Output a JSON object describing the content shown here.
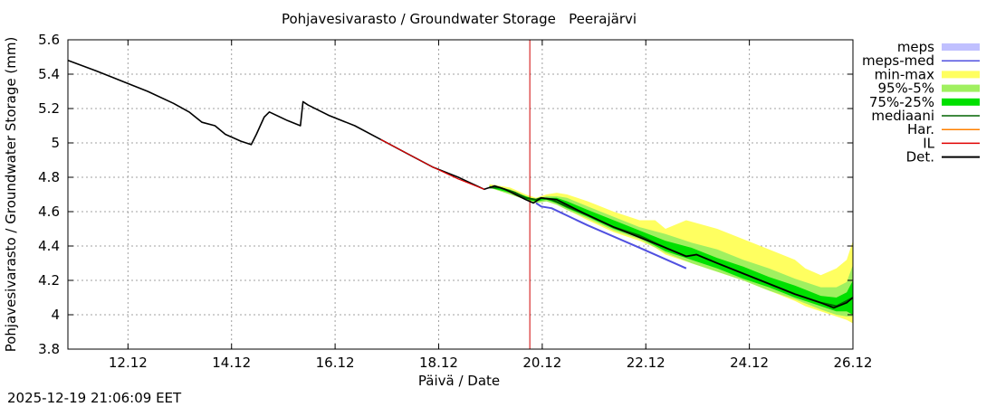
{
  "chart_data": {
    "type": "line",
    "title": "Pohjavesivarasto / Groundwater Storage   Peerajärvi",
    "xlabel": "Päivä / Date",
    "ylabel": "Pohjavesivarasto / Groundwater Storage (mm)",
    "xlim": [
      10.96,
      26.12
    ],
    "ylim": [
      3.8,
      5.6
    ],
    "grid": true,
    "legend_position": "top-right-outside",
    "x_ticks": [
      {
        "value": 12.12,
        "label": "12.12"
      },
      {
        "value": 14.12,
        "label": "14.12"
      },
      {
        "value": 16.12,
        "label": "16.12"
      },
      {
        "value": 18.12,
        "label": "18.12"
      },
      {
        "value": 20.12,
        "label": "20.12"
      },
      {
        "value": 22.12,
        "label": "22.12"
      },
      {
        "value": 24.12,
        "label": "24.12"
      },
      {
        "value": 26.12,
        "label": "26.12"
      }
    ],
    "y_ticks": [
      {
        "value": 3.8,
        "label": "3.8"
      },
      {
        "value": 4.0,
        "label": "4"
      },
      {
        "value": 4.2,
        "label": "4.2"
      },
      {
        "value": 4.4,
        "label": "4.4"
      },
      {
        "value": 4.6,
        "label": "4.6"
      },
      {
        "value": 4.8,
        "label": "4.8"
      },
      {
        "value": 5.0,
        "label": "5"
      },
      {
        "value": 5.2,
        "label": "5.2"
      },
      {
        "value": 5.4,
        "label": "5.4"
      },
      {
        "value": 5.6,
        "label": "5.6"
      }
    ],
    "now_x": 19.88,
    "legend": [
      {
        "key": "meps",
        "label": "meps",
        "color": "#c0c0ff",
        "kind": "band"
      },
      {
        "key": "meps_med",
        "label": "meps-med",
        "color": "#5050e0",
        "kind": "line"
      },
      {
        "key": "minmax",
        "label": "min-max",
        "color": "#ffff60",
        "kind": "band"
      },
      {
        "key": "p95_5",
        "label": "95%-5%",
        "color": "#a0f060",
        "kind": "band"
      },
      {
        "key": "p75_25",
        "label": "75%-25%",
        "color": "#00e000",
        "kind": "band"
      },
      {
        "key": "mediaani",
        "label": "mediaani",
        "color": "#006400",
        "kind": "line"
      },
      {
        "key": "har",
        "label": "Har.",
        "color": "#ff8000",
        "kind": "line"
      },
      {
        "key": "il",
        "label": "IL",
        "color": "#e00000",
        "kind": "line"
      },
      {
        "key": "det",
        "label": "Det.",
        "color": "#000000",
        "kind": "line"
      }
    ],
    "series": {
      "minmax": {
        "x": [
          19.1,
          19.5,
          19.8,
          20.0,
          20.2,
          20.4,
          20.6,
          21.0,
          21.5,
          22.0,
          22.3,
          22.5,
          22.9,
          23.5,
          24.0,
          24.5,
          25.0,
          25.2,
          25.5,
          25.8,
          26.0,
          26.12
        ],
        "low": [
          4.74,
          4.7,
          4.67,
          4.65,
          4.66,
          4.64,
          4.61,
          4.55,
          4.48,
          4.43,
          4.39,
          4.35,
          4.31,
          4.25,
          4.2,
          4.14,
          4.08,
          4.05,
          4.02,
          3.99,
          3.97,
          3.95
        ],
        "high": [
          4.76,
          4.74,
          4.7,
          4.68,
          4.7,
          4.71,
          4.7,
          4.66,
          4.6,
          4.55,
          4.55,
          4.5,
          4.55,
          4.5,
          4.44,
          4.38,
          4.32,
          4.27,
          4.23,
          4.27,
          4.32,
          4.43
        ]
      },
      "p95_5": {
        "x": [
          19.1,
          19.5,
          19.8,
          20.0,
          20.2,
          20.4,
          20.6,
          21.0,
          21.5,
          22.0,
          22.5,
          23.0,
          23.5,
          24.0,
          24.5,
          25.0,
          25.5,
          25.8,
          26.0,
          26.12
        ],
        "low": [
          4.74,
          4.7,
          4.67,
          4.65,
          4.66,
          4.64,
          4.61,
          4.56,
          4.49,
          4.44,
          4.36,
          4.3,
          4.25,
          4.2,
          4.14,
          4.09,
          4.03,
          4.0,
          3.99,
          3.99
        ],
        "high": [
          4.75,
          4.73,
          4.69,
          4.67,
          4.69,
          4.69,
          4.68,
          4.63,
          4.57,
          4.51,
          4.47,
          4.42,
          4.38,
          4.32,
          4.27,
          4.21,
          4.16,
          4.16,
          4.19,
          4.29
        ]
      },
      "p75_25": {
        "x": [
          19.1,
          19.5,
          19.8,
          20.0,
          20.2,
          20.4,
          20.6,
          21.0,
          21.5,
          22.0,
          22.5,
          23.0,
          23.5,
          24.0,
          24.5,
          25.0,
          25.5,
          25.8,
          26.0,
          26.12
        ],
        "low": [
          4.74,
          4.71,
          4.67,
          4.66,
          4.67,
          4.65,
          4.62,
          4.57,
          4.5,
          4.45,
          4.37,
          4.32,
          4.27,
          4.21,
          4.16,
          4.1,
          4.05,
          4.02,
          4.02,
          4.0
        ],
        "high": [
          4.75,
          4.72,
          4.69,
          4.67,
          4.68,
          4.68,
          4.66,
          4.61,
          4.55,
          4.49,
          4.43,
          4.39,
          4.33,
          4.28,
          4.22,
          4.17,
          4.11,
          4.1,
          4.13,
          4.2
        ]
      },
      "mediaani": {
        "x": [
          19.1,
          19.3,
          19.6,
          19.8,
          20.0,
          20.1,
          20.3,
          20.6,
          21.0,
          21.5,
          22.0,
          22.5,
          22.9,
          23.1,
          23.5,
          24.0,
          24.5,
          25.0,
          25.5,
          25.8,
          26.0,
          26.12
        ],
        "y": [
          4.74,
          4.74,
          4.71,
          4.68,
          4.67,
          4.68,
          4.67,
          4.63,
          4.58,
          4.51,
          4.46,
          4.39,
          4.34,
          4.35,
          4.3,
          4.24,
          4.18,
          4.12,
          4.07,
          4.05,
          4.08,
          4.1
        ]
      },
      "det": {
        "x": [
          10.96,
          11.5,
          12.0,
          12.5,
          13.0,
          13.3,
          13.55,
          13.8,
          14.0,
          14.3,
          14.5,
          14.6,
          14.75,
          14.85,
          15.2,
          15.45,
          15.5,
          15.6,
          16.0,
          16.5,
          17.0,
          17.5,
          18.0,
          18.5,
          19.0,
          19.2,
          19.4,
          19.6,
          19.8,
          19.95,
          20.05,
          20.1,
          20.4,
          20.6,
          21.0,
          21.5,
          22.0,
          22.5,
          22.9,
          23.1,
          23.5,
          24.0,
          24.5,
          25.0,
          25.5,
          25.75,
          26.0,
          26.12
        ],
        "y": [
          5.48,
          5.42,
          5.36,
          5.3,
          5.23,
          5.18,
          5.12,
          5.1,
          5.05,
          5.01,
          4.99,
          5.05,
          5.15,
          5.18,
          5.13,
          5.1,
          5.24,
          5.22,
          5.16,
          5.1,
          5.02,
          4.94,
          4.86,
          4.8,
          4.73,
          4.75,
          4.73,
          4.7,
          4.67,
          4.65,
          4.67,
          4.68,
          4.67,
          4.64,
          4.58,
          4.51,
          4.45,
          4.39,
          4.34,
          4.35,
          4.3,
          4.24,
          4.18,
          4.12,
          4.07,
          4.04,
          4.07,
          4.1
        ]
      },
      "il": {
        "x": [
          17.0,
          17.5,
          18.0,
          18.5,
          19.0
        ],
        "y": [
          5.02,
          4.94,
          4.86,
          4.79,
          4.73
        ]
      },
      "meps_med": {
        "x": [
          20.0,
          20.1,
          20.3,
          21.0,
          22.0,
          22.9
        ],
        "y": [
          4.65,
          4.63,
          4.62,
          4.52,
          4.39,
          4.27
        ]
      }
    }
  },
  "footer": {
    "timestamp": "2025-12-19 21:06:09 EET"
  }
}
